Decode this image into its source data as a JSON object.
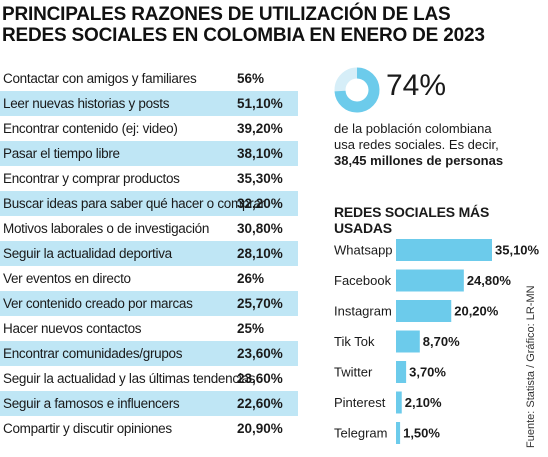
{
  "title": {
    "line1": "PRINCIPALES RAZONES DE UTILIZACIÓN DE LAS",
    "line2": "REDES SOCIALES EN COLOMBIA EN ENERO DE 2023"
  },
  "reasons": [
    {
      "label": "Contactar con amigos y familiares",
      "value": "56%"
    },
    {
      "label": "Leer nuevas historias y posts",
      "value": "51,10%"
    },
    {
      "label": "Encontrar contenido (ej: video)",
      "value": "39,20%"
    },
    {
      "label": "Pasar el tiempo libre",
      "value": "38,10%"
    },
    {
      "label": "Encontrar y comprar productos",
      "value": "35,30%"
    },
    {
      "label": "Buscar ideas para saber qué hacer o comprar",
      "value": "32,20%"
    },
    {
      "label": "Motivos laborales o de investigación",
      "value": "30,80%"
    },
    {
      "label": "Seguir la actualidad deportiva",
      "value": "28,10%"
    },
    {
      "label": "Ver eventos en directo",
      "value": "26%"
    },
    {
      "label": "Ver contenido creado por marcas",
      "value": "25,70%"
    },
    {
      "label": "Hacer nuevos contactos",
      "value": "25%"
    },
    {
      "label": "Encontrar comunidades/grupos",
      "value": "23,60%"
    },
    {
      "label": "Seguir la actualidad y las últimas tendencias",
      "value": "23,60%"
    },
    {
      "label": "Seguir a famosos e influencers",
      "value": "22,60%"
    },
    {
      "label": "Compartir y discutir opiniones",
      "value": "20,90%"
    }
  ],
  "population": {
    "percent_label": "74%",
    "percent_value": 74,
    "line1": "de la población colombiana",
    "line2": "usa redes sociales. Es decir,",
    "line3": "38,45 millones de personas"
  },
  "social_title": "REDES SOCIALES MÁS USADAS",
  "colors": {
    "accent": "#6ccbeb",
    "shade": "#bfe6f5",
    "donut_track": "#d6eef8"
  },
  "chart_data": [
    {
      "type": "table",
      "categories": [
        "Contactar con amigos y familiares",
        "Leer nuevas historias y posts",
        "Encontrar contenido (ej: video)",
        "Pasar el tiempo libre",
        "Encontrar y comprar productos",
        "Buscar ideas para saber qué hacer o comprar",
        "Motivos laborales o de investigación",
        "Seguir la actualidad deportiva",
        "Ver eventos en directo",
        "Ver contenido creado por marcas",
        "Hacer nuevos contactos",
        "Encontrar comunidades/grupos",
        "Seguir la actualidad y las últimas tendencias",
        "Seguir a famosos e influencers",
        "Compartir y discutir opiniones"
      ],
      "values": [
        56,
        51.1,
        39.2,
        38.1,
        35.3,
        32.2,
        30.8,
        28.1,
        26,
        25.7,
        25,
        23.6,
        23.6,
        22.6,
        20.9
      ],
      "title": "PRINCIPALES RAZONES DE UTILIZACIÓN DE LAS REDES SOCIALES EN COLOMBIA EN ENERO DE 2023"
    },
    {
      "type": "pie",
      "values": [
        74
      ],
      "labels": [
        "74%"
      ]
    },
    {
      "type": "bar",
      "orientation": "horizontal",
      "title": "REDES SOCIALES MÁS USADAS",
      "categories": [
        "Whatsapp",
        "Facebook",
        "Instagram",
        "Tik Tok",
        "Twitter",
        "Pinterest",
        "Telegram"
      ],
      "values": [
        35.1,
        24.8,
        20.2,
        8.7,
        3.7,
        2.1,
        1.5
      ],
      "value_labels": [
        "35,10%",
        "24,80%",
        "20,20%",
        "8,70%",
        "3,70%",
        "2,10%",
        "1,50%"
      ],
      "grid": false
    }
  ],
  "credit": "Fuente: Statista / Gráfico: LR-MN"
}
